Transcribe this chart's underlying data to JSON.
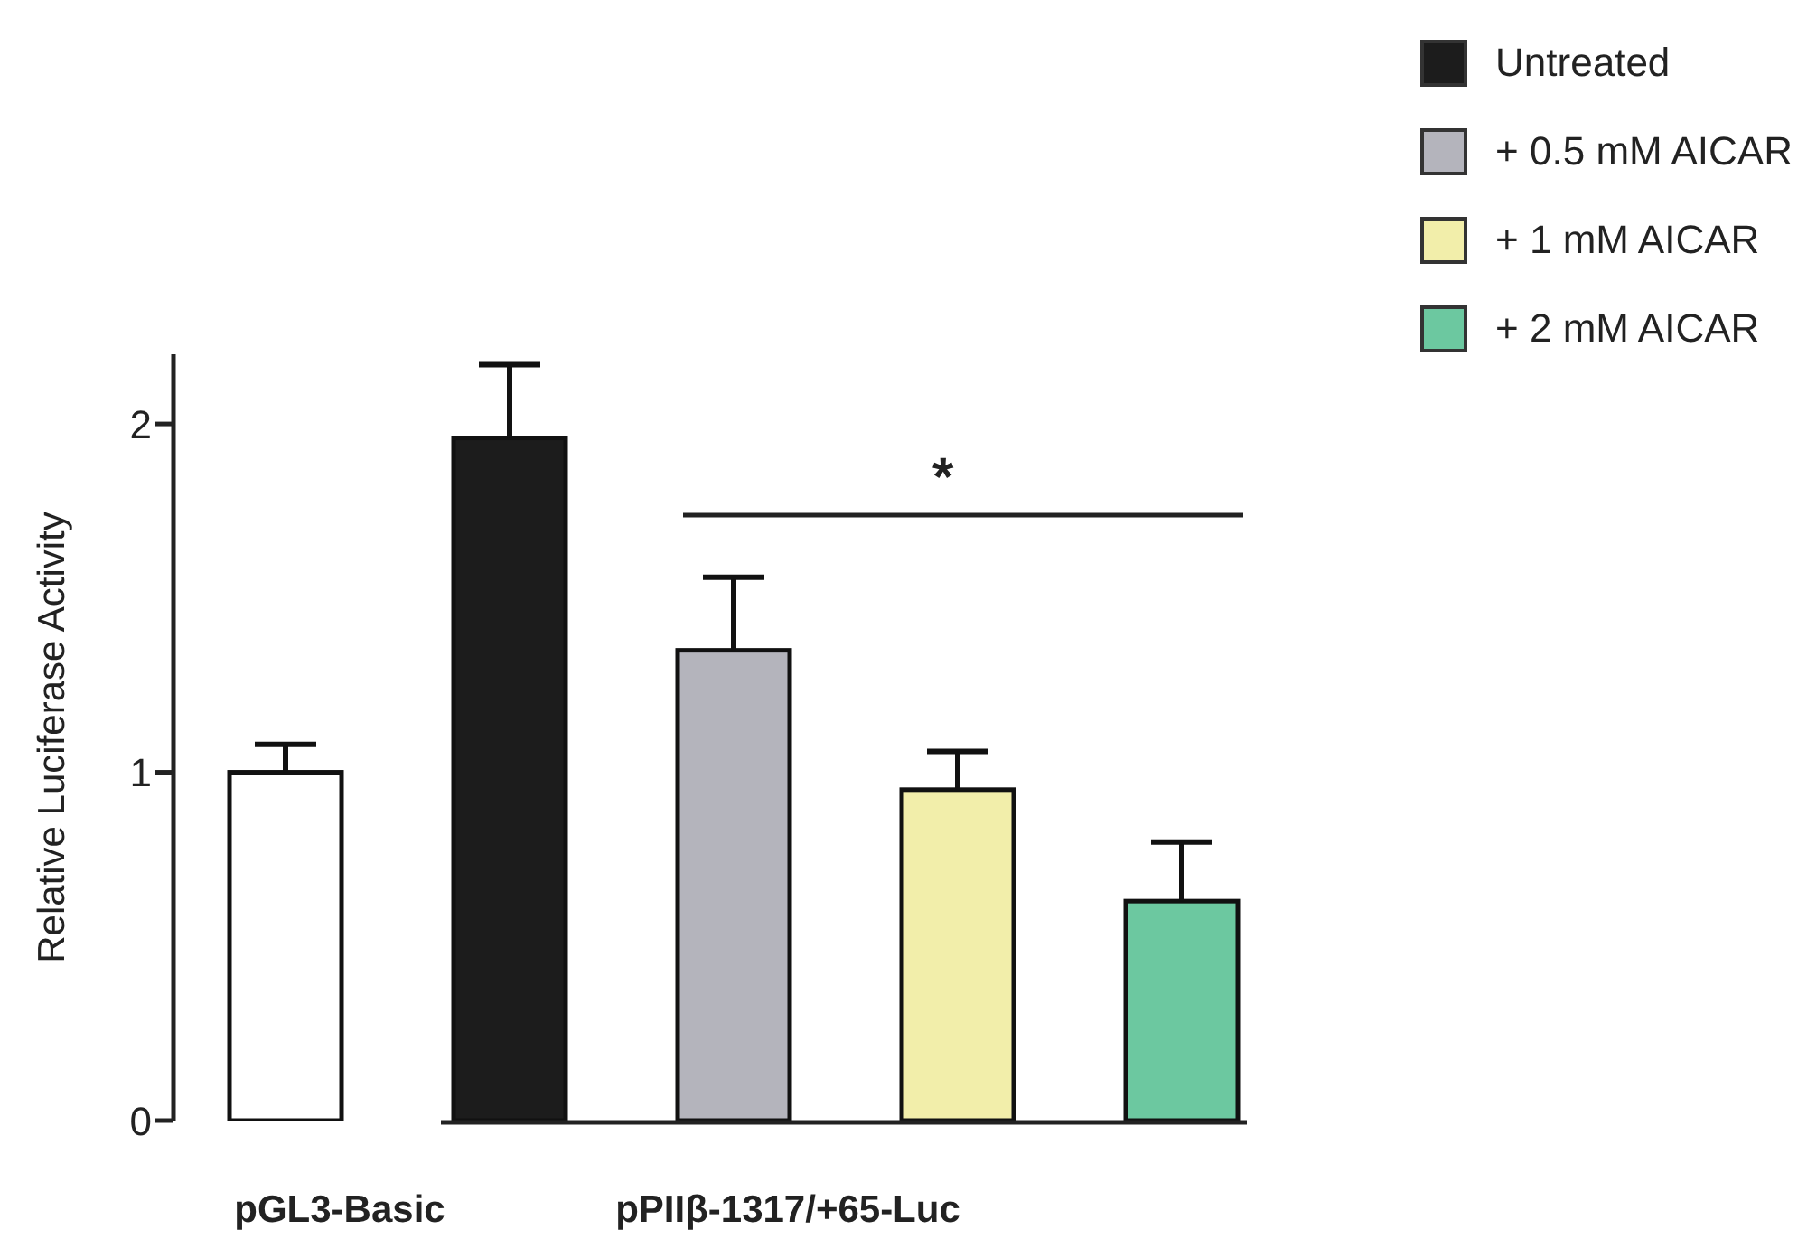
{
  "chart_data": {
    "type": "bar",
    "ylabel": "Relative Luciferase Activity",
    "categories": [
      "pGL3-Basic",
      null,
      "pPIIβ-1317/+65-Luc",
      null,
      null
    ],
    "stacked": true,
    "ylim": [
      0,
      2.2
    ],
    "yticks": [
      0,
      1,
      2
    ],
    "grid": false,
    "legend": "top right",
    "annotations": [
      "*"
    ],
    "series": [
      {
        "color": "#ffffff",
        "values": [
          1.0,
          null,
          null,
          null,
          null
        ],
        "errors": [
          [
            1.0,
            1.08
          ],
          null,
          null,
          null,
          null
        ]
      },
      {
        "name": "Untreated",
        "color": "#1c1c1c",
        "values": [
          null,
          1.96,
          null,
          null,
          null
        ],
        "errors": [
          null,
          [
            1.96,
            2.17
          ],
          null,
          null,
          null
        ]
      },
      {
        "name": "+ 0.5 mM AICAR",
        "color": "#b4b4bc",
        "values": [
          null,
          null,
          1.35,
          null,
          null
        ],
        "errors": [
          null,
          null,
          [
            1.35,
            1.56
          ],
          null,
          null
        ]
      },
      {
        "name": "+ 1 mM AICAR",
        "color": "#f2eeaa",
        "values": [
          null,
          null,
          null,
          0.95,
          null
        ],
        "errors": [
          null,
          null,
          null,
          [
            0.95,
            1.06
          ],
          null
        ]
      },
      {
        "name": "+ 2 mM AICAR",
        "color": "#6cc8a0",
        "values": [
          null,
          null,
          null,
          null,
          0.63
        ],
        "errors": [
          null,
          null,
          null,
          null,
          [
            0.63,
            0.8
          ]
        ]
      }
    ]
  }
}
